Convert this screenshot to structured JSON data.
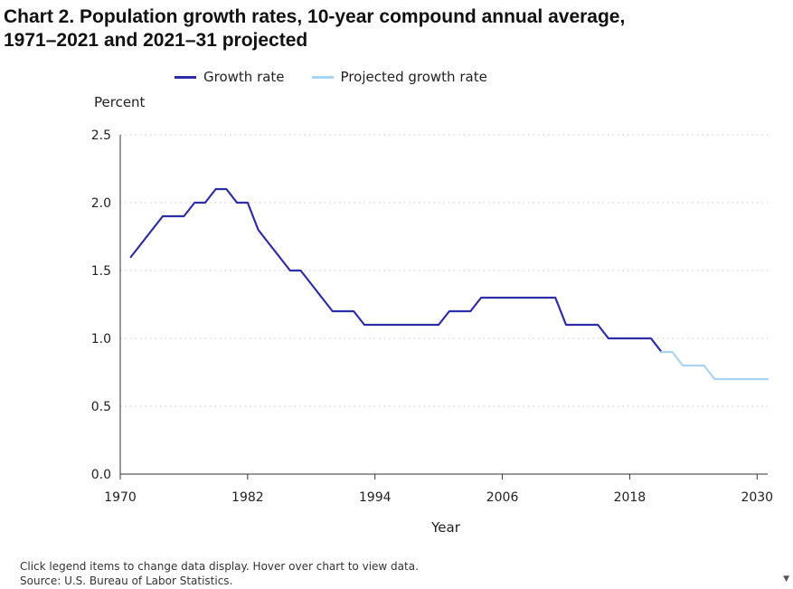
{
  "title_line1": "Chart 2. Population growth rates, 10-year compound annual average,",
  "title_line2": "1971–2021 and 2021–31 projected",
  "footnote_line1": "Click legend items to change data display. Hover over chart to view data.",
  "footnote_line2": "Source: U.S. Bureau of Labor Statistics.",
  "corner_mark": "▼",
  "colors": {
    "growth": "#2e2ca6",
    "projected": "#a9d3f5",
    "grid": "#c8c8c8",
    "axis": "#333333"
  },
  "chart_data": {
    "type": "line",
    "title": "Chart 2. Population growth rates, 10-year compound annual average, 1971–2021 and 2021–31 projected",
    "xlabel": "Year",
    "ylabel": "Percent",
    "xlim": [
      1970,
      2031
    ],
    "ylim": [
      0,
      2.5
    ],
    "grid": true,
    "legend_position": "top",
    "x_ticks": [
      1970,
      1982,
      1994,
      2006,
      2018,
      2030
    ],
    "y_ticks": [
      0.0,
      0.5,
      1.0,
      1.5,
      2.0,
      2.5
    ],
    "x_tick_labels": [
      "1970",
      "1982",
      "1994",
      "2006",
      "2018",
      "2030"
    ],
    "y_tick_labels": [
      "0.0",
      "0.5",
      "1.0",
      "1.5",
      "2.0",
      "2.5"
    ],
    "series": [
      {
        "name": "Growth rate",
        "x": [
          1971,
          1972,
          1973,
          1974,
          1975,
          1976,
          1977,
          1978,
          1979,
          1980,
          1981,
          1982,
          1983,
          1984,
          1985,
          1986,
          1987,
          1988,
          1989,
          1990,
          1991,
          1992,
          1993,
          1994,
          1995,
          1996,
          1997,
          1998,
          1999,
          2000,
          2001,
          2002,
          2003,
          2004,
          2005,
          2006,
          2007,
          2008,
          2009,
          2010,
          2011,
          2012,
          2013,
          2014,
          2015,
          2016,
          2017,
          2018,
          2019,
          2020,
          2021
        ],
        "values": [
          1.6,
          1.7,
          1.8,
          1.9,
          1.9,
          1.9,
          2.0,
          2.0,
          2.1,
          2.1,
          2.0,
          2.0,
          1.8,
          1.7,
          1.6,
          1.5,
          1.5,
          1.4,
          1.3,
          1.2,
          1.2,
          1.2,
          1.1,
          1.1,
          1.1,
          1.1,
          1.1,
          1.1,
          1.1,
          1.1,
          1.2,
          1.2,
          1.2,
          1.3,
          1.3,
          1.3,
          1.3,
          1.3,
          1.3,
          1.3,
          1.3,
          1.1,
          1.1,
          1.1,
          1.1,
          1.0,
          1.0,
          1.0,
          1.0,
          1.0,
          0.9
        ]
      },
      {
        "name": "Projected growth rate",
        "x": [
          2021,
          2022,
          2023,
          2024,
          2025,
          2026,
          2027,
          2028,
          2029,
          2030,
          2031
        ],
        "values": [
          0.9,
          0.9,
          0.8,
          0.8,
          0.8,
          0.7,
          0.7,
          0.7,
          0.7,
          0.7,
          0.7
        ]
      }
    ]
  }
}
